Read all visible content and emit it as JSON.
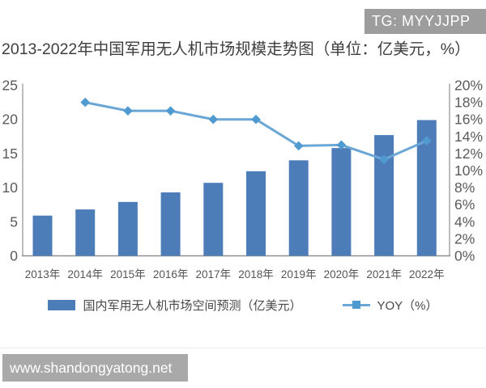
{
  "watermark": {
    "badge": "TG: MYYJJPP"
  },
  "title": "2013-2022年中国军用无人机市场规模走势图（单位：亿美元，%）",
  "footer": {
    "url": "www.shandongyatong.net"
  },
  "colors": {
    "bar": "#4d7db8",
    "line": "#6aa7d6",
    "marker": "#4f9bd1",
    "axis_line": "#a6a6a6",
    "x_axis_line": "#8f8f8f",
    "tick_text": "#5a5a5a",
    "x_tick_text": "#555555"
  },
  "chart_data": {
    "type": "bar",
    "title": "2013-2022年中国军用无人机市场规模走势图（单位：亿美元，%）",
    "categories": [
      "2013年",
      "2014年",
      "2015年",
      "2016年",
      "2017年",
      "2018年",
      "2019年",
      "2020年",
      "2021年",
      "2022年"
    ],
    "series": [
      {
        "name": "国内军用无人机市场空间预测（亿美元）",
        "type": "bar",
        "axis": "left",
        "values": [
          5.9,
          6.8,
          7.9,
          9.3,
          10.7,
          12.4,
          14.0,
          15.8,
          17.7,
          19.9
        ]
      },
      {
        "name": "YOY（%）",
        "type": "line",
        "axis": "right",
        "values": [
          null,
          18.0,
          17.0,
          17.0,
          16.0,
          16.0,
          12.9,
          13.0,
          11.3,
          13.5
        ]
      }
    ],
    "left_axis": {
      "min": 0,
      "max": 25,
      "step": 5,
      "suffix": ""
    },
    "right_axis": {
      "min": 0,
      "max": 20,
      "step": 2,
      "suffix": "%"
    },
    "grid": false,
    "legend_position": "bottom",
    "xlabel": "",
    "ylabel_left": "亿美元",
    "ylabel_right": "%"
  }
}
